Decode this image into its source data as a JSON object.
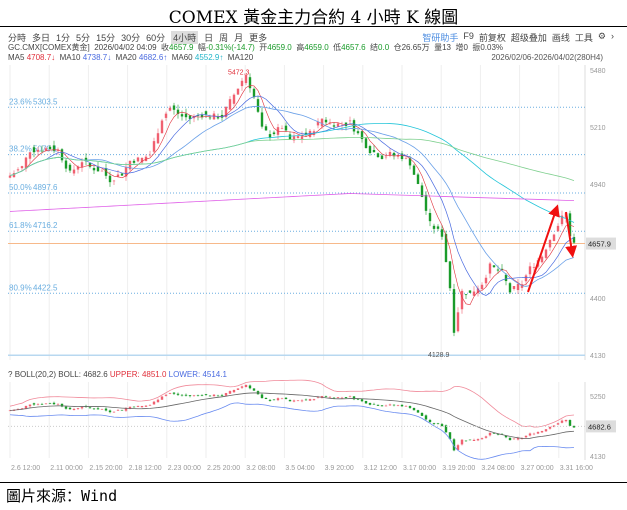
{
  "title": "COMEX 黃金主力合約 4 小時 K 線圖",
  "toolbar": {
    "periods": [
      "分時",
      "多日",
      "1分",
      "5分",
      "15分",
      "30分",
      "60分",
      "4小時",
      "日",
      "周",
      "月",
      "更多"
    ],
    "active": "4小時",
    "right": [
      "智研助手",
      "F9",
      "前复权",
      "超级叠加",
      "画线",
      "工具",
      "⚙",
      "›"
    ]
  },
  "info": {
    "symbol": "GC.CMX[COMEX黄金]",
    "datetime": "2026/04/02 04:09",
    "close_label": "收",
    "close": "4657.9",
    "change_label": "幅",
    "change": "-0.31%(-14.7)",
    "open_label": "开",
    "open": "4659.0",
    "high_label": "高",
    "high": "4659.0",
    "low_label": "低",
    "low": "4657.6",
    "settle_label": "结",
    "settle": "0.0",
    "oi_label": "仓",
    "oi": "26.65万",
    "vol_label": "量",
    "vol": "13",
    "inc_label": "增",
    "inc": "0",
    "amp_label": "振",
    "amp": "0.03%"
  },
  "ma": {
    "ma5": "MA5",
    "ma5v": "4708.7↓",
    "ma10": "MA10",
    "ma10v": "4738.7↓",
    "ma20": "MA20",
    "ma20v": "4682.6↑",
    "ma60": "MA60",
    "ma60v": "4552.9↑",
    "ma120": "MA120"
  },
  "range": "2026/02/06-2026/04/02(280H4)",
  "boll": {
    "q": "?",
    "name": "BOLL(20,2)",
    "mid_label": "BOLL:",
    "mid": "4682.6",
    "upper_label": "UPPER:",
    "upper": "4851.0",
    "lower_label": "LOWER:",
    "lower": "4514.1"
  },
  "source": "圖片來源：Wind",
  "colors": {
    "up": "#f06070",
    "down": "#1a9b2a",
    "ma5": "#e0303b",
    "ma10": "#4a6be0",
    "ma20": "#6aa0e8",
    "ma60": "#23c5d9",
    "ma120": "#e060e8",
    "ma250": "#7fd08f",
    "fib": "#6aaee0",
    "last": "#f7b98a"
  },
  "chart_data": {
    "type": "candlestick",
    "y_ticks": [
      "5480",
      "5210",
      "4940",
      "4400",
      "4130"
    ],
    "last_price": "4657.9",
    "high_label": "5472.3",
    "low_label": "4128.9",
    "fib": [
      {
        "pct": "23.6%",
        "v": "5303.5"
      },
      {
        "pct": "38.2%",
        "v": "5079.1"
      },
      {
        "pct": "50.0%",
        "v": "4897.6"
      },
      {
        "pct": "61.8%",
        "v": "4716.2"
      },
      {
        "pct": "80.9%",
        "v": "4422.5"
      }
    ],
    "fib_bottom": 4128.9,
    "x_labels": [
      "2.6 12:00",
      "2.11 00:00",
      "2.15 20:00",
      "2.18 12:00",
      "2.23 00:00",
      "2.25 20:00",
      "3.2 08:00",
      "3.5 04:00",
      "3.9 20:00",
      "3.12 12:00",
      "3.17 00:00",
      "3.19 20:00",
      "3.24 08:00",
      "3.27 00:00",
      "3.31 16:00"
    ],
    "boll_y_ticks": [
      "5250",
      "4130"
    ],
    "boll_last": "4682.6",
    "waypoints": [
      [
        0,
        4980
      ],
      [
        3,
        5020
      ],
      [
        5,
        5100
      ],
      [
        10,
        5110
      ],
      [
        12,
        5100
      ],
      [
        15,
        4990
      ],
      [
        18,
        5050
      ],
      [
        20,
        5020
      ],
      [
        23,
        5000
      ],
      [
        25,
        4960
      ],
      [
        28,
        4990
      ],
      [
        30,
        5050
      ],
      [
        33,
        5060
      ],
      [
        35,
        5080
      ],
      [
        38,
        5250
      ],
      [
        40,
        5300
      ],
      [
        43,
        5260
      ],
      [
        45,
        5250
      ],
      [
        48,
        5270
      ],
      [
        50,
        5260
      ],
      [
        53,
        5260
      ],
      [
        55,
        5330
      ],
      [
        58,
        5430
      ],
      [
        59,
        5460
      ],
      [
        61,
        5350
      ],
      [
        63,
        5200
      ],
      [
        65,
        5170
      ],
      [
        68,
        5210
      ],
      [
        70,
        5150
      ],
      [
        73,
        5170
      ],
      [
        75,
        5180
      ],
      [
        78,
        5250
      ],
      [
        80,
        5230
      ],
      [
        83,
        5220
      ],
      [
        85,
        5230
      ],
      [
        88,
        5150
      ],
      [
        90,
        5100
      ],
      [
        93,
        5070
      ],
      [
        95,
        5080
      ],
      [
        98,
        5070
      ],
      [
        100,
        5040
      ],
      [
        103,
        4880
      ],
      [
        105,
        4750
      ],
      [
        108,
        4700
      ],
      [
        110,
        4450
      ],
      [
        111,
        4250
      ],
      [
        113,
        4430
      ],
      [
        115,
        4420
      ],
      [
        118,
        4470
      ],
      [
        120,
        4550
      ],
      [
        123,
        4520
      ],
      [
        125,
        4430
      ],
      [
        128,
        4470
      ],
      [
        130,
        4540
      ],
      [
        133,
        4600
      ],
      [
        135,
        4680
      ],
      [
        138,
        4780
      ],
      [
        139,
        4800
      ],
      [
        140,
        4700
      ],
      [
        141,
        4658
      ]
    ]
  }
}
